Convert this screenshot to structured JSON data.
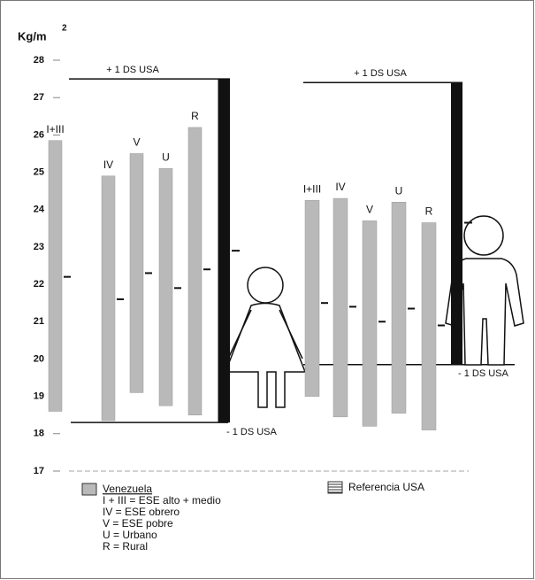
{
  "chart_data": {
    "type": "range_bar",
    "y_label": "Kg/m",
    "y_label_sup": "2",
    "ylim": [
      17,
      28
    ],
    "yticks": [
      17,
      18,
      19,
      20,
      21,
      22,
      23,
      24,
      25,
      26,
      27,
      28
    ],
    "bar_color": "#b9b9b9",
    "reference_color": "#111111",
    "groups": [
      {
        "categories": [
          "I+III",
          "IV",
          "V",
          "U",
          "R"
        ],
        "high": [
          25.85,
          24.9,
          25.5,
          25.1,
          26.2
        ],
        "low": [
          18.6,
          18.35,
          19.1,
          18.75,
          18.5
        ],
        "median": [
          22.2,
          21.6,
          22.3,
          21.9,
          22.4
        ],
        "reference": {
          "high": 27.5,
          "low": 18.3,
          "median": 22.9,
          "high_label": "+ 1 DS USA",
          "low_label": "- 1 DS USA"
        }
      },
      {
        "categories": [
          "I+III",
          "IV",
          "V",
          "U",
          "R"
        ],
        "high": [
          24.25,
          24.3,
          23.7,
          24.2,
          23.65
        ],
        "low": [
          19.0,
          18.45,
          18.2,
          18.55,
          18.1
        ],
        "median": [
          21.5,
          21.4,
          21.0,
          21.35,
          20.9
        ],
        "reference": {
          "high": 27.4,
          "low": 19.85,
          "median": 23.65,
          "high_label": "+ 1 DS USA",
          "low_label": "- 1 DS USA"
        }
      }
    ],
    "legend": {
      "venezuela": "Venezuela",
      "usa": "Referencia  USA",
      "notes": [
        "I + III = ESE alto + medio",
        "IV = ESE obrero",
        "V = ESE pobre",
        "U = Urbano",
        "R = Rural"
      ]
    }
  }
}
